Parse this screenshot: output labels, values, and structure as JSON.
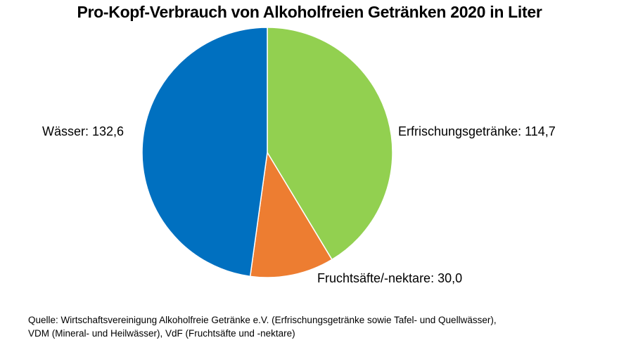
{
  "chart_data": {
    "type": "pie",
    "title": "Pro-Kopf-Verbrauch von Alkoholfreien Getränken 2020 in Liter",
    "categories": [
      "Erfrischungsgetränke",
      "Fruchtsäfte/-nektare",
      "Wässer"
    ],
    "values": [
      114.7,
      30.0,
      132.6
    ],
    "colors": [
      "#92D050",
      "#ED7D31",
      "#0070C0"
    ],
    "labels": [
      "Erfrischungsgetränke: 114,7",
      "Fruchtsäfte/-nektare: 30,0",
      "Wässer: 132,6"
    ],
    "start_angle": "12 o'clock, clockwise",
    "legend": "none (data labels beside slices)"
  },
  "source": {
    "line1": "Quelle: Wirtschaftsvereinigung Alkoholfreie Getränke e.V. (Erfrischungsgetränke sowie Tafel- und Quellwässer),",
    "line2": "VDM (Mineral- und Heilwässer), VdF (Fruchtsäfte und -nektare)"
  }
}
